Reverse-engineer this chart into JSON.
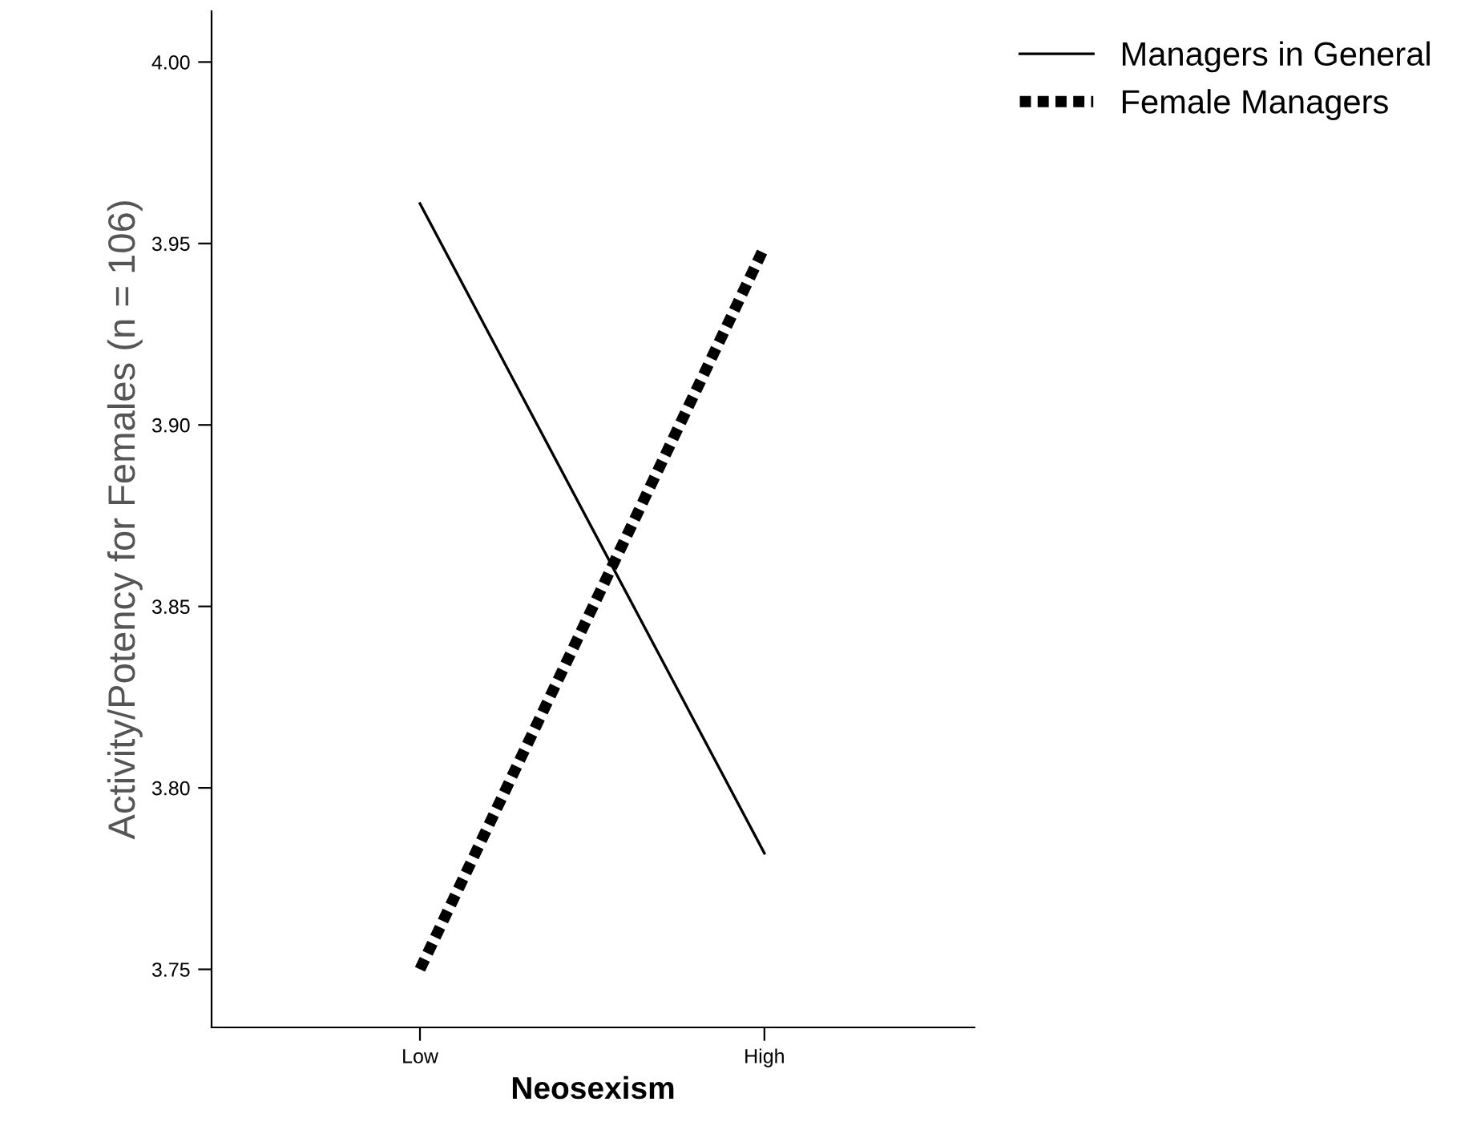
{
  "chart_data": {
    "type": "line",
    "xlabel": "Neosexism",
    "ylabel": "Activity/Potency for Females (n = 106)",
    "categories": [
      "Low",
      "High"
    ],
    "series": [
      {
        "name": "Managers in General",
        "color": "#000000",
        "values": [
          3.961,
          3.782
        ],
        "line_style": "solid"
      },
      {
        "name": "Female Managers",
        "color": "#000000",
        "values": [
          3.75,
          3.949
        ],
        "line_style": "dotted"
      }
    ],
    "ylim": [
      3.734,
      4.014
    ],
    "yticks": [
      {
        "value": 3.75,
        "label": "3.75"
      },
      {
        "value": 3.8,
        "label": "3.80"
      },
      {
        "value": 3.85,
        "label": "3.85"
      },
      {
        "value": 3.9,
        "label": "3.90"
      },
      {
        "value": 3.95,
        "label": "3.95"
      },
      {
        "value": 4.0,
        "label": "4.00"
      }
    ],
    "grid": false,
    "legend": "top right",
    "marker": "none"
  }
}
